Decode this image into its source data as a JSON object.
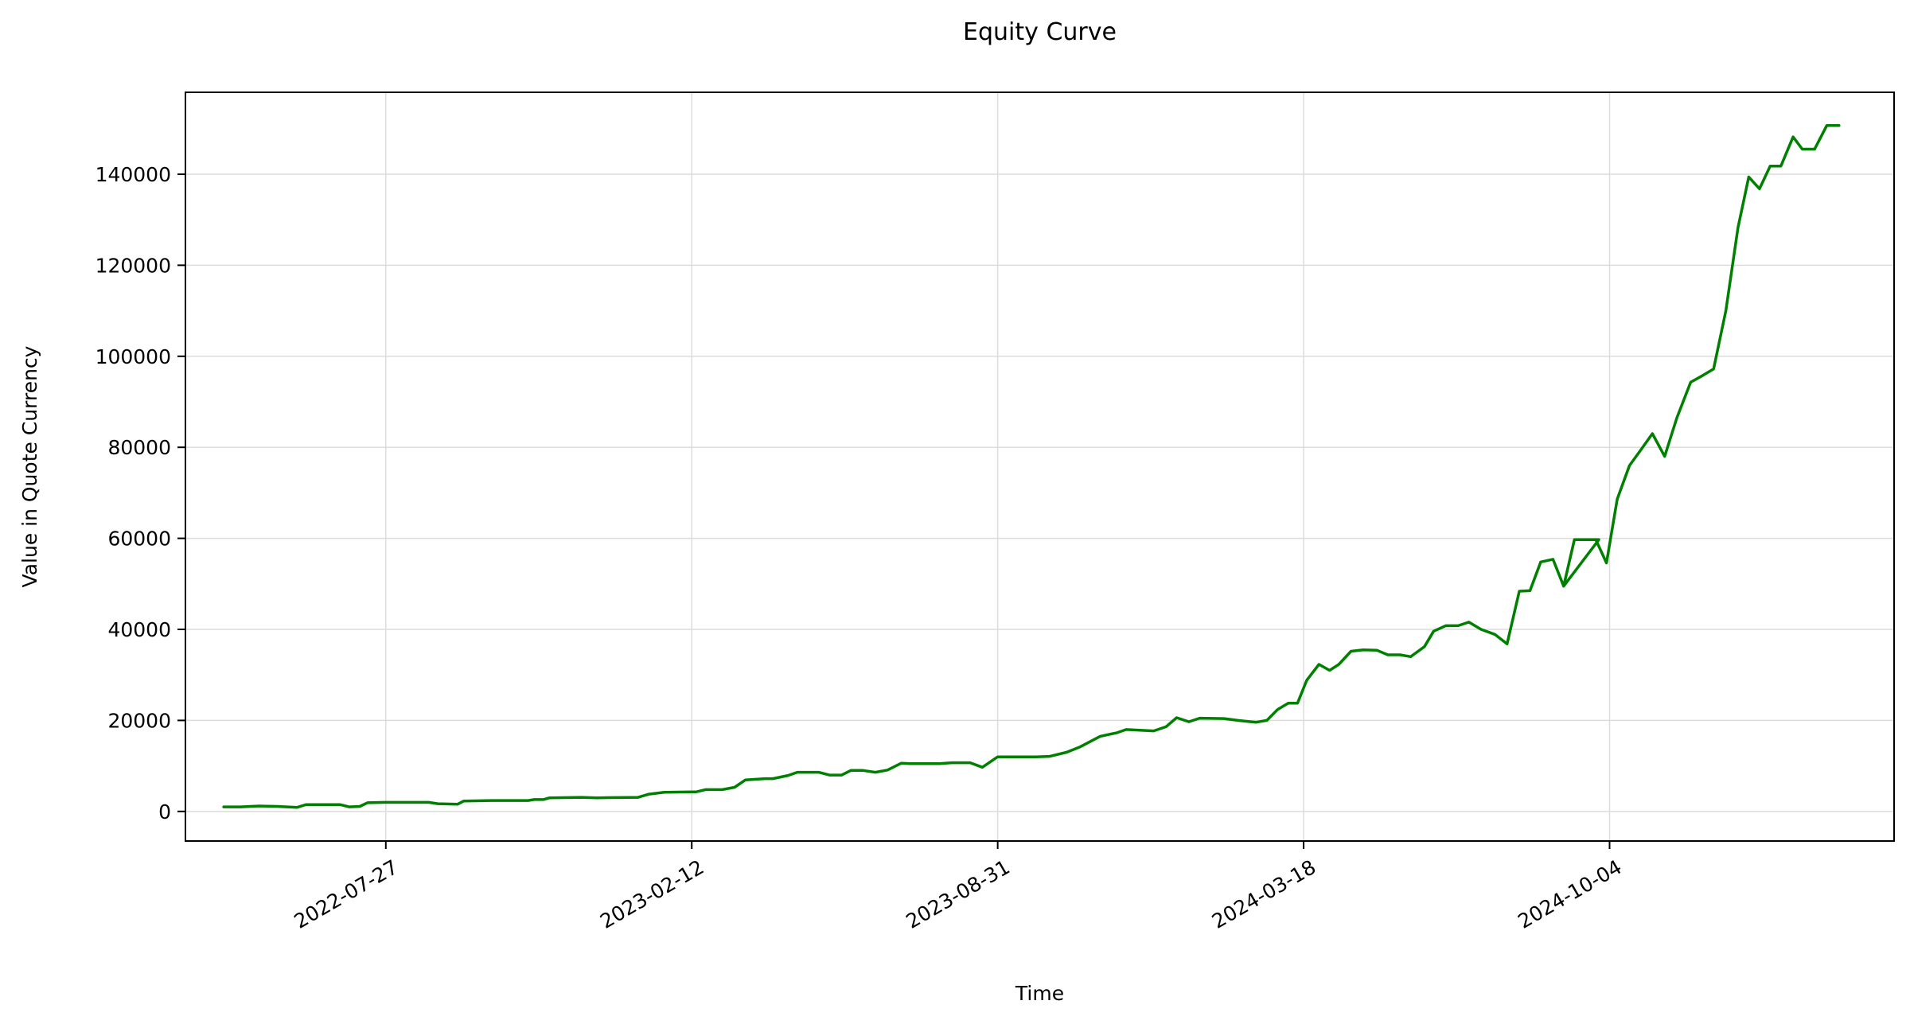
{
  "chart_data": {
    "type": "line",
    "title": "Equity Curve",
    "xlabel": "Time",
    "ylabel": "Value in Quote Currency",
    "grid": true,
    "legend": "none",
    "x_axis": {
      "type": "date",
      "range": [
        "2022-03-18",
        "2025-04-08"
      ],
      "ticks": [
        "2022-07-27",
        "2023-02-12",
        "2023-08-31",
        "2024-03-18",
        "2024-10-04"
      ]
    },
    "y_axis": {
      "range": [
        -6500,
        158000
      ],
      "ticks": [
        0,
        20000,
        40000,
        60000,
        80000,
        100000,
        120000,
        140000
      ],
      "tick_labels": [
        "0",
        "20000",
        "40000",
        "60000",
        "80000",
        "100000",
        "120000",
        "140000"
      ]
    },
    "series": [
      {
        "color": "#008000",
        "points": [
          [
            "2022-04-12",
            1000
          ],
          [
            "2022-04-23",
            1000
          ],
          [
            "2022-05-05",
            1200
          ],
          [
            "2022-05-17",
            1100
          ],
          [
            "2022-05-30",
            900
          ],
          [
            "2022-06-05",
            1500
          ],
          [
            "2022-06-27",
            1500
          ],
          [
            "2022-07-03",
            1000
          ],
          [
            "2022-07-10",
            1100
          ],
          [
            "2022-07-15",
            1900
          ],
          [
            "2022-07-27",
            2000
          ],
          [
            "2022-08-24",
            2000
          ],
          [
            "2022-08-30",
            1700
          ],
          [
            "2022-09-12",
            1600
          ],
          [
            "2022-09-16",
            2300
          ],
          [
            "2022-10-04",
            2400
          ],
          [
            "2022-10-28",
            2400
          ],
          [
            "2022-11-01",
            2600
          ],
          [
            "2022-11-07",
            2600
          ],
          [
            "2022-11-11",
            3000
          ],
          [
            "2022-12-02",
            3100
          ],
          [
            "2022-12-12",
            3000
          ],
          [
            "2023-01-08",
            3100
          ],
          [
            "2023-01-15",
            3800
          ],
          [
            "2023-01-25",
            4200
          ],
          [
            "2023-02-12",
            4300
          ],
          [
            "2023-02-15",
            4300
          ],
          [
            "2023-02-21",
            4800
          ],
          [
            "2023-03-04",
            4800
          ],
          [
            "2023-03-12",
            5300
          ],
          [
            "2023-03-19",
            6900
          ],
          [
            "2023-04-01",
            7200
          ],
          [
            "2023-04-06",
            7200
          ],
          [
            "2023-04-16",
            7900
          ],
          [
            "2023-04-22",
            8600
          ],
          [
            "2023-05-06",
            8600
          ],
          [
            "2023-05-13",
            8000
          ],
          [
            "2023-05-21",
            8000
          ],
          [
            "2023-05-27",
            9000
          ],
          [
            "2023-06-04",
            9000
          ],
          [
            "2023-06-12",
            8600
          ],
          [
            "2023-06-20",
            9100
          ],
          [
            "2023-06-29",
            10600
          ],
          [
            "2023-07-05",
            10500
          ],
          [
            "2023-07-24",
            10500
          ],
          [
            "2023-08-01",
            10700
          ],
          [
            "2023-08-13",
            10700
          ],
          [
            "2023-08-21",
            9700
          ],
          [
            "2023-08-31",
            12000
          ],
          [
            "2023-09-09",
            12000
          ],
          [
            "2023-09-25",
            12000
          ],
          [
            "2023-10-04",
            12100
          ],
          [
            "2023-10-15",
            13000
          ],
          [
            "2023-10-24",
            14200
          ],
          [
            "2023-11-06",
            16500
          ],
          [
            "2023-11-17",
            17300
          ],
          [
            "2023-11-23",
            18000
          ],
          [
            "2023-12-11",
            17700
          ],
          [
            "2023-12-19",
            18600
          ],
          [
            "2023-12-26",
            20600
          ],
          [
            "2024-01-03",
            19700
          ],
          [
            "2024-01-10",
            20500
          ],
          [
            "2024-01-26",
            20400
          ],
          [
            "2024-02-04",
            20000
          ],
          [
            "2024-02-10",
            19800
          ],
          [
            "2024-02-16",
            19600
          ],
          [
            "2024-02-23",
            20000
          ],
          [
            "2024-03-01",
            22400
          ],
          [
            "2024-03-08",
            23800
          ],
          [
            "2024-03-14",
            23800
          ],
          [
            "2024-03-20",
            28800
          ],
          [
            "2024-03-28",
            32300
          ],
          [
            "2024-04-04",
            31000
          ],
          [
            "2024-04-10",
            32300
          ],
          [
            "2024-04-18",
            35200
          ],
          [
            "2024-04-26",
            35500
          ],
          [
            "2024-05-05",
            35400
          ],
          [
            "2024-05-12",
            34400
          ],
          [
            "2024-05-20",
            34400
          ],
          [
            "2024-05-27",
            34000
          ],
          [
            "2024-06-05",
            36200
          ],
          [
            "2024-06-11",
            39600
          ],
          [
            "2024-06-19",
            40800
          ],
          [
            "2024-06-27",
            40800
          ],
          [
            "2024-07-04",
            41600
          ],
          [
            "2024-07-12",
            40000
          ],
          [
            "2024-07-21",
            38900
          ],
          [
            "2024-07-29",
            36800
          ],
          [
            "2024-08-06",
            48400
          ],
          [
            "2024-08-13",
            48500
          ],
          [
            "2024-08-20",
            54800
          ],
          [
            "2024-08-28",
            55400
          ],
          [
            "2024-09-04",
            49500
          ],
          [
            "2024-09-11",
            59700
          ],
          [
            "2024-09-27",
            59700
          ],
          [
            "2024-09-04",
            49500
          ],
          [
            "2024-09-11",
            59700
          ],
          [
            "2024-09-25",
            59700
          ],
          [
            "2024-10-02",
            54600
          ],
          [
            "2024-10-09",
            68600
          ],
          [
            "2024-10-17",
            76000
          ],
          [
            "2024-10-25",
            79700
          ],
          [
            "2024-11-01",
            83000
          ],
          [
            "2024-11-09",
            78000
          ],
          [
            "2024-11-17",
            86500
          ],
          [
            "2024-11-26",
            94300
          ],
          [
            "2024-12-04",
            95800
          ],
          [
            "2024-12-11",
            97200
          ],
          [
            "2024-12-19",
            110000
          ],
          [
            "2024-12-27",
            128300
          ],
          [
            "2025-01-03",
            139400
          ],
          [
            "2025-01-10",
            136800
          ],
          [
            "2025-01-17",
            141800
          ],
          [
            "2025-01-24",
            141800
          ],
          [
            "2025-02-01",
            148200
          ],
          [
            "2025-02-07",
            145500
          ],
          [
            "2025-02-15",
            145500
          ],
          [
            "2025-02-23",
            150700
          ],
          [
            "2025-03-03",
            150700
          ]
        ]
      }
    ]
  }
}
